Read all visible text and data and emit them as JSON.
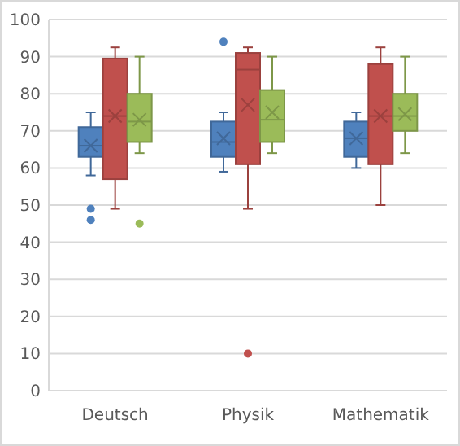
{
  "chart_data": {
    "type": "box",
    "categories": [
      "Deutsch",
      "Physik",
      "Mathematik"
    ],
    "ylim": [
      0,
      100
    ],
    "yticks": [
      0,
      10,
      20,
      30,
      40,
      50,
      60,
      70,
      80,
      90,
      100
    ],
    "grid": "y",
    "series": [
      {
        "color": "#4f81bd",
        "boxes": [
          {
            "low": 58,
            "q1": 63,
            "median": 66,
            "q3": 71,
            "high": 75,
            "mean": 66,
            "outliers": [
              49,
              46
            ]
          },
          {
            "low": 59,
            "q1": 63,
            "median": 67,
            "q3": 72.5,
            "high": 75,
            "mean": 68,
            "outliers": [
              94
            ]
          },
          {
            "low": 60,
            "q1": 63,
            "median": 68,
            "q3": 72.5,
            "high": 75,
            "mean": 68
          }
        ]
      },
      {
        "color": "#c0504d",
        "boxes": [
          {
            "low": 49,
            "q1": 57,
            "median": 74,
            "q3": 89.5,
            "high": 92.5,
            "mean": 74
          },
          {
            "low": 49,
            "q1": 61,
            "median": 86.5,
            "q3": 91,
            "high": 92.5,
            "mean": 77,
            "outliers": [
              10
            ]
          },
          {
            "low": 50,
            "q1": 61,
            "median": 74,
            "q3": 88,
            "high": 92.5,
            "mean": 74
          }
        ]
      },
      {
        "color": "#9bbb59",
        "boxes": [
          {
            "low": 64,
            "q1": 67,
            "median": 72.5,
            "q3": 80,
            "high": 90,
            "mean": 73,
            "outliers": [
              45
            ]
          },
          {
            "low": 64,
            "q1": 67,
            "median": 73,
            "q3": 81,
            "high": 90,
            "mean": 75
          },
          {
            "low": 64,
            "q1": 70,
            "median": 74,
            "q3": 80,
            "high": 90,
            "mean": 74.5
          }
        ]
      }
    ]
  }
}
